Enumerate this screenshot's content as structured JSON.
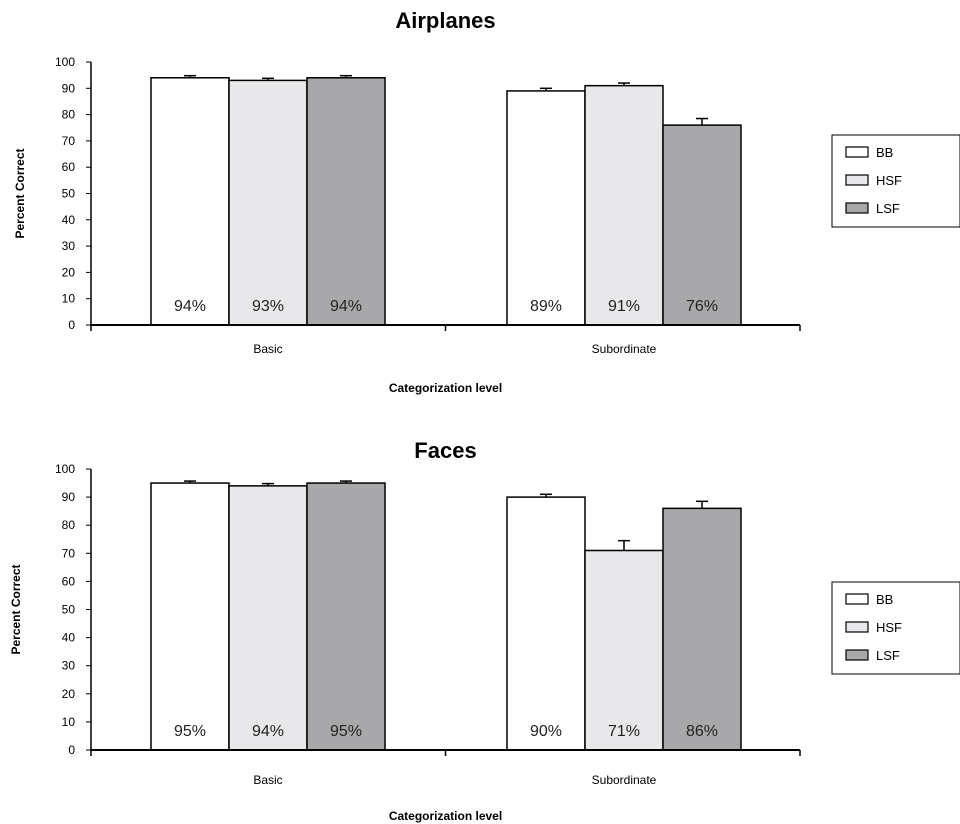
{
  "chart_data": [
    {
      "type": "bar",
      "title": "Airplanes",
      "xlabel": "Categorization level",
      "ylabel": "Percent Correct",
      "ylim": [
        0,
        100
      ],
      "yticks": [
        0,
        10,
        20,
        30,
        40,
        50,
        60,
        70,
        80,
        90,
        100
      ],
      "categories": [
        "Basic",
        "Subordinate"
      ],
      "series": [
        {
          "name": "BB",
          "color": "#ffffff",
          "values": [
            94,
            89
          ],
          "errors": [
            0.8,
            1.0
          ],
          "labels": [
            "94%",
            "89%"
          ]
        },
        {
          "name": "HSF",
          "color": "#e8e8ea",
          "values": [
            93,
            91
          ],
          "errors": [
            0.8,
            1.0
          ],
          "labels": [
            "93%",
            "91%"
          ]
        },
        {
          "name": "LSF",
          "color": "#a8a8aa",
          "values": [
            94,
            76
          ],
          "errors": [
            0.8,
            2.5
          ],
          "labels": [
            "94%",
            "76%"
          ]
        }
      ],
      "legend": "right"
    },
    {
      "type": "bar",
      "title": "Faces",
      "xlabel": "Categorization level",
      "ylabel": "Percent Correct",
      "ylim": [
        0,
        100
      ],
      "yticks": [
        0,
        10,
        20,
        30,
        40,
        50,
        60,
        70,
        80,
        90,
        100
      ],
      "categories": [
        "Basic",
        "Subordinate"
      ],
      "series": [
        {
          "name": "BB",
          "color": "#ffffff",
          "values": [
            95,
            90
          ],
          "errors": [
            0.7,
            1.0
          ],
          "labels": [
            "95%",
            "90%"
          ]
        },
        {
          "name": "HSF",
          "color": "#e8e8ea",
          "values": [
            94,
            71
          ],
          "errors": [
            0.8,
            3.5
          ],
          "labels": [
            "94%",
            "71%"
          ]
        },
        {
          "name": "LSF",
          "color": "#a8a8aa",
          "values": [
            95,
            86
          ],
          "errors": [
            0.7,
            2.5
          ],
          "labels": [
            "95%",
            "86%"
          ]
        }
      ],
      "legend": "right"
    }
  ]
}
